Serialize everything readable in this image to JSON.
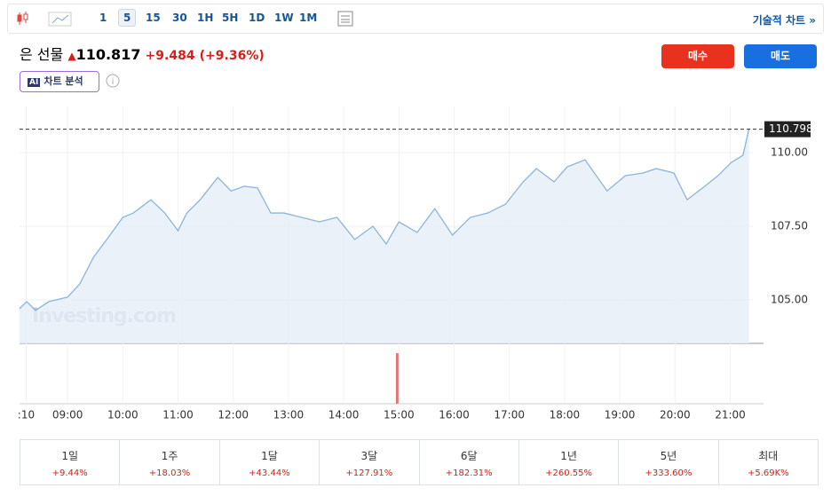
{
  "toolbar": {
    "intervals": [
      "1",
      "5",
      "15",
      "30",
      "1H",
      "5H",
      "1D",
      "1W",
      "1M"
    ],
    "selected": "5",
    "technical": "기술적 차트 »"
  },
  "quote": {
    "name": "은 선물",
    "price": "110.817",
    "change": "+9.484",
    "change_pct": "(+9.36%)"
  },
  "buttons": {
    "buy": "매수",
    "sell": "매도"
  },
  "ai": {
    "badge": "AI",
    "label": "차트 분석"
  },
  "chart_data": {
    "type": "area",
    "color": "#8db4d9",
    "fill": "#e6eef7",
    "watermark": "Investing.com",
    "x": [
      8.13,
      8.26,
      8.42,
      8.66,
      9.0,
      9.22,
      9.47,
      9.71,
      10.0,
      10.19,
      10.51,
      10.76,
      11.0,
      11.16,
      11.4,
      11.72,
      11.96,
      12.2,
      12.44,
      12.68,
      12.92,
      13.24,
      13.56,
      13.88,
      14.2,
      14.53,
      14.77,
      15.0,
      15.33,
      15.65,
      15.97,
      16.29,
      16.61,
      16.93,
      17.25,
      17.49,
      17.81,
      18.05,
      18.37,
      18.77,
      19.1,
      19.42,
      19.66,
      19.98,
      20.22,
      20.54,
      20.78,
      21.02,
      21.23,
      21.34
    ],
    "values": [
      104.7,
      104.94,
      104.64,
      104.94,
      105.09,
      105.54,
      106.45,
      107.05,
      107.8,
      107.95,
      108.4,
      107.95,
      107.35,
      107.95,
      108.4,
      109.16,
      108.7,
      108.86,
      108.8,
      107.95,
      107.95,
      107.8,
      107.65,
      107.8,
      107.05,
      107.5,
      106.9,
      107.65,
      107.29,
      108.1,
      107.2,
      107.8,
      107.95,
      108.25,
      109.01,
      109.46,
      109.01,
      109.52,
      109.76,
      108.7,
      109.22,
      109.31,
      109.46,
      109.31,
      108.4,
      108.86,
      109.22,
      109.67,
      109.91,
      110.81
    ],
    "last_value": 110.798,
    "xlim": [
      8.13,
      21.41
    ],
    "ylim": [
      103.52,
      111.57
    ],
    "xticks": [
      {
        "value": 8.25,
        "label": ":10"
      },
      {
        "value": 9,
        "label": "09:00"
      },
      {
        "value": 10,
        "label": "10:00"
      },
      {
        "value": 11,
        "label": "11:00"
      },
      {
        "value": 12,
        "label": "12:00"
      },
      {
        "value": 13,
        "label": "13:00"
      },
      {
        "value": 14,
        "label": "14:00"
      },
      {
        "value": 15,
        "label": "15:00"
      },
      {
        "value": 16,
        "label": "16:00"
      },
      {
        "value": 17,
        "label": "17:00"
      },
      {
        "value": 18,
        "label": "18:00"
      },
      {
        "value": 19,
        "label": "19:00"
      },
      {
        "value": 20,
        "label": "20:00"
      },
      {
        "value": 21,
        "label": "21:00"
      }
    ],
    "yticks": [
      {
        "value": 105,
        "label": "105.00"
      },
      {
        "value": 107.5,
        "label": "107.50"
      },
      {
        "value": 110,
        "label": "110.00"
      }
    ],
    "grid": true
  },
  "performance": [
    {
      "period": "1일",
      "change": "+9.44%"
    },
    {
      "period": "1주",
      "change": "+18.03%"
    },
    {
      "period": "1달",
      "change": "+43.44%"
    },
    {
      "period": "3달",
      "change": "+127.91%"
    },
    {
      "period": "6달",
      "change": "+182.31%"
    },
    {
      "period": "1년",
      "change": "+260.55%"
    },
    {
      "period": "5년",
      "change": "+333.60%"
    },
    {
      "period": "최대",
      "change": "+5.69K%"
    }
  ]
}
